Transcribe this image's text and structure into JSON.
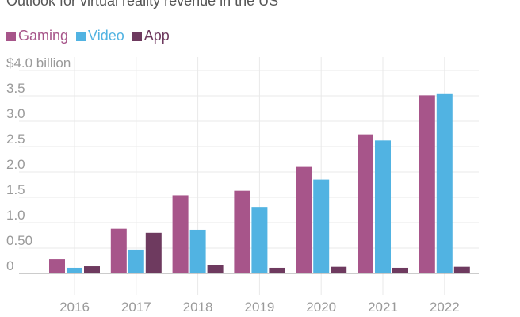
{
  "chart_data": {
    "type": "bar",
    "title": "Outlook for virtual reality revenue in the US",
    "categories": [
      "2016",
      "2017",
      "2018",
      "2019",
      "2020",
      "2021",
      "2022"
    ],
    "series": [
      {
        "name": "Gaming",
        "color": "#a7558a",
        "values": [
          0.28,
          0.88,
          1.54,
          1.63,
          2.1,
          2.74,
          3.51
        ]
      },
      {
        "name": "Video",
        "color": "#51b3e2",
        "values": [
          0.11,
          0.47,
          0.86,
          1.31,
          1.85,
          2.62,
          3.55
        ]
      },
      {
        "name": "App",
        "color": "#6e3a5f",
        "values": [
          0.14,
          0.8,
          0.16,
          0.11,
          0.13,
          0.11,
          0.13
        ]
      }
    ],
    "yticks": [
      {
        "value": 0,
        "label": "0"
      },
      {
        "value": 0.5,
        "label": "0.50"
      },
      {
        "value": 1.0,
        "label": "1.0"
      },
      {
        "value": 1.5,
        "label": "1.5"
      },
      {
        "value": 2.0,
        "label": "2.0"
      },
      {
        "value": 2.5,
        "label": "2.5"
      },
      {
        "value": 3.0,
        "label": "3.0"
      },
      {
        "value": 3.5,
        "label": "3.5"
      },
      {
        "value": 4.0,
        "label": "$4.0 billion"
      }
    ],
    "ylim": [
      0,
      4.0
    ],
    "grid": true,
    "legend_position": "top-left"
  }
}
